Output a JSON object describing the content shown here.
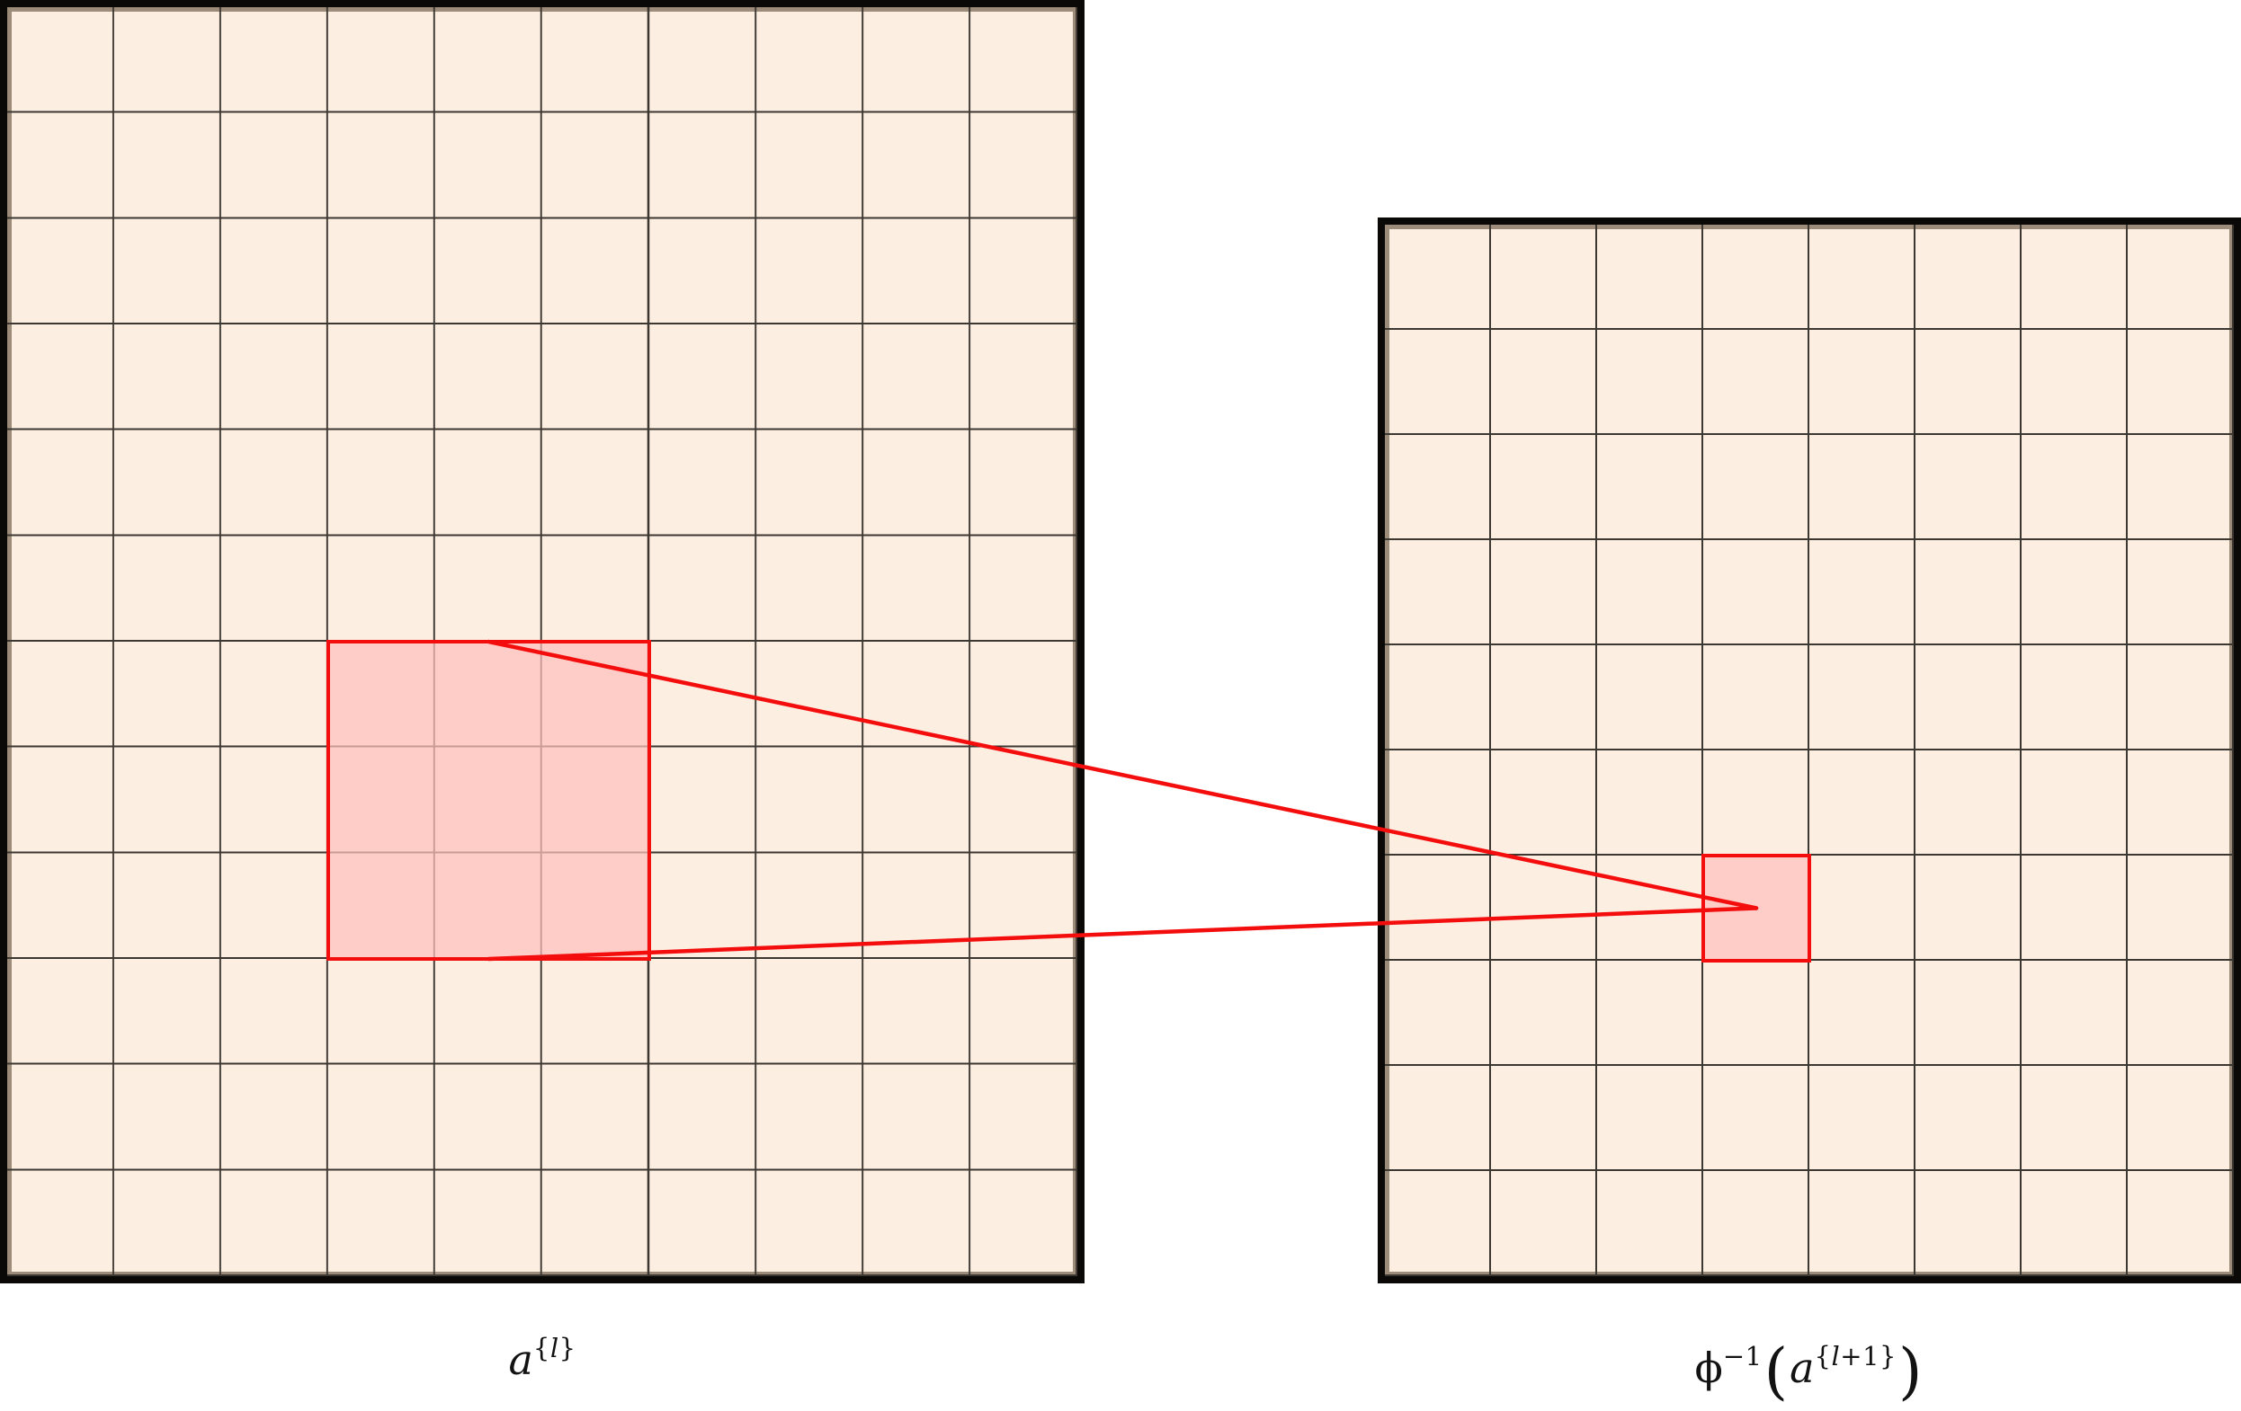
{
  "figure": {
    "description": "unpooling-receptive-field-diagram",
    "colors": {
      "background": "#ffffff",
      "cell_fill": "#fdeee2",
      "grid_line": "#3d3731",
      "frame": "#0a0908",
      "accent_red": "#f40d0d",
      "highlight_fill": "rgba(255,193,190,0.72)"
    },
    "left_grid": {
      "cols": 10,
      "rows": 12,
      "highlight": {
        "col_start": 4,
        "row_start": 7,
        "col_span": 3,
        "row_span": 3
      },
      "label": {
        "base": "a",
        "sup_open": "{",
        "sup_var": "l",
        "sup_close": "}"
      }
    },
    "right_grid": {
      "cols": 8,
      "rows": 10,
      "highlight": {
        "col_start": 4,
        "row_start": 7,
        "col_span": 1,
        "row_span": 1
      },
      "label": {
        "phi": "ϕ",
        "exp": "−1",
        "paren_open": "(",
        "base": "a",
        "sup_open": "{",
        "sup_var": "l",
        "sup_rest": "+1",
        "sup_close": "}",
        "paren_close": ")"
      }
    },
    "mapping": {
      "from": "3x3-region-left-grid",
      "to": "1x1-cell-right-grid"
    }
  }
}
